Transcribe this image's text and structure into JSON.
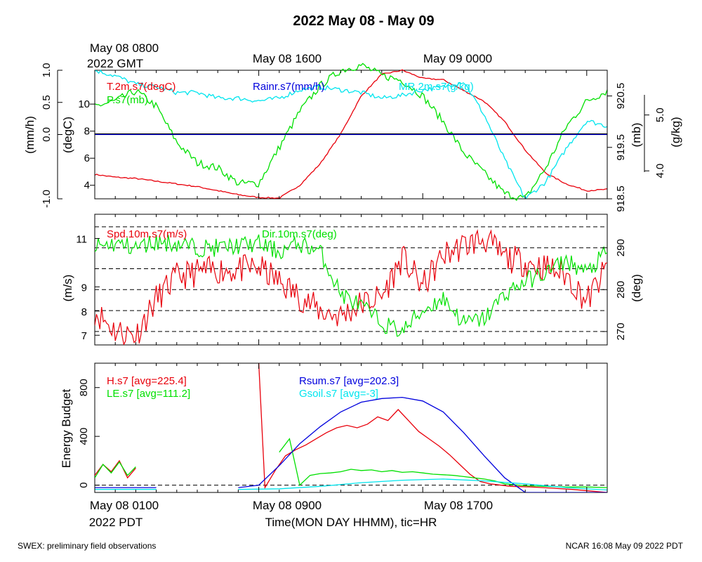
{
  "title": "2022 May 08 - May 09",
  "footer_left": "SWEX: preliminary field observations",
  "footer_right": "NCAR 16:08 May 09 2022 PDT",
  "top_time_labels": {
    "gmt_start_line1": "May 08 0800",
    "gmt_start_line2": "2022 GMT",
    "mid": "May 08 1600",
    "end": "May 09 0000"
  },
  "bottom_time_labels": {
    "start": "May 08 0100",
    "start_line2": "2022 PDT",
    "mid": "May 08 0900",
    "end": "May 08 1700",
    "axis_label": "Time(MON DAY HHMM), tic=HR"
  },
  "colors": {
    "red": "#e8000b",
    "green": "#00e000",
    "blue": "#0000dd",
    "cyan": "#00e5ee",
    "black": "#000000"
  },
  "chart_data": [
    {
      "type": "line",
      "panel": "thermo",
      "x_unit": "hours since May 08 0000 PDT",
      "xlim": [
        1,
        26
      ],
      "axes": {
        "rain": {
          "label": "(mm/h)",
          "ticks": [
            "-1.0",
            "0.0",
            "0.5",
            "1.0"
          ],
          "tick_values": [
            -1.0,
            0.0,
            0.5,
            1.0
          ],
          "ylim": [
            -1.0,
            1.0
          ]
        },
        "temp": {
          "label": "(degC)",
          "ticks": [
            "4",
            "6",
            "8",
            "10"
          ],
          "tick_values": [
            4,
            6,
            8,
            10
          ],
          "ylim": [
            3.0,
            12.5
          ]
        },
        "pres": {
          "label": "(mb)",
          "ticks": [
            "918.5",
            "919.5",
            "920.5"
          ],
          "tick_values": [
            918.5,
            919.5,
            920.5
          ],
          "ylim": [
            918.5,
            921.0
          ]
        },
        "mr": {
          "label": "(g/kg)",
          "ticks": [
            "4.0",
            "5.0"
          ],
          "tick_values": [
            4.0,
            5.0
          ],
          "ylim": [
            3.5,
            5.8
          ]
        }
      },
      "series": [
        {
          "name": "T.2m.s7(degC)",
          "axis": "temp",
          "color": "#e8000b",
          "x": [
            1,
            2,
            3,
            4,
            5,
            6,
            7,
            8,
            9,
            10,
            11,
            12,
            13,
            14,
            15,
            16,
            17,
            18,
            19,
            20,
            21,
            22,
            23,
            24,
            25,
            26
          ],
          "y": [
            4.8,
            4.6,
            4.5,
            4.3,
            4.1,
            3.9,
            3.6,
            3.3,
            3.1,
            3.05,
            4.0,
            5.6,
            7.8,
            10.6,
            12.2,
            12.5,
            11.9,
            11.8,
            11.0,
            10.2,
            8.7,
            6.6,
            4.9,
            4.1,
            3.6,
            3.7
          ]
        },
        {
          "name": "P.s7(mb)",
          "axis": "pres",
          "color": "#00e000",
          "x": [
            1,
            2,
            3,
            4,
            5,
            6,
            7,
            8,
            9,
            10,
            11,
            12,
            13,
            14,
            15,
            16,
            17,
            18,
            19,
            20,
            21,
            22,
            23,
            24,
            25,
            26
          ],
          "y": [
            920.3,
            920.4,
            920.6,
            920.3,
            919.6,
            919.2,
            919.1,
            918.8,
            918.8,
            919.5,
            920.2,
            920.7,
            921.0,
            921.1,
            920.9,
            920.8,
            920.5,
            920.0,
            919.4,
            919.0,
            918.6,
            918.5,
            919.1,
            919.9,
            920.4,
            920.6
          ]
        },
        {
          "name": "MR.2m.s7(g/kg)",
          "axis": "mr",
          "color": "#00e5ee",
          "x": [
            1,
            2,
            3,
            4,
            5,
            6,
            7,
            8,
            9,
            10,
            11,
            12,
            13,
            14,
            15,
            16,
            17,
            18,
            19,
            20,
            21,
            22,
            23,
            24,
            25,
            26
          ],
          "y": [
            5.8,
            5.7,
            5.55,
            5.5,
            5.4,
            5.4,
            5.3,
            5.3,
            5.25,
            5.3,
            5.45,
            5.5,
            5.45,
            5.4,
            5.3,
            5.35,
            5.45,
            5.5,
            5.6,
            5.0,
            4.2,
            3.5,
            3.8,
            4.4,
            4.9,
            4.8
          ]
        },
        {
          "name": "Rainr.s7(mm/h)",
          "axis": "rain",
          "color": "#0000dd",
          "x": [
            1,
            26
          ],
          "y": [
            0.0,
            0.0
          ]
        }
      ]
    },
    {
      "type": "line",
      "panel": "wind",
      "x_unit": "hours since May 08 0000 PDT",
      "xlim": [
        1,
        26
      ],
      "axes": {
        "spd": {
          "label": "(m/s)",
          "ticks": [
            "7",
            "8",
            "9",
            "11"
          ],
          "tick_values": [
            7,
            8,
            9,
            11
          ],
          "ylim": [
            6.6,
            12.0
          ]
        },
        "dir": {
          "label": "(deg)",
          "ticks": [
            "270",
            "280",
            "290"
          ],
          "tick_values": [
            270,
            280,
            290
          ],
          "ylim": [
            266.8,
            298.0
          ]
        }
      },
      "series": [
        {
          "name": "Spd.10m.s7(m/s)",
          "axis": "spd",
          "color": "#e8000b",
          "x": [
            1,
            2,
            3,
            4,
            5,
            6,
            7,
            8,
            9,
            10,
            11,
            12,
            13,
            14,
            15,
            16,
            17,
            18,
            19,
            20,
            21,
            22,
            23,
            24,
            25,
            26
          ],
          "y": [
            8.0,
            7.2,
            7.0,
            8.5,
            9.4,
            9.6,
            9.7,
            9.7,
            9.8,
            9.2,
            8.6,
            8.0,
            7.8,
            8.3,
            8.6,
            10.2,
            9.0,
            10.3,
            10.7,
            11.0,
            10.2,
            10.0,
            9.8,
            9.5,
            8.4,
            9.8
          ]
        },
        {
          "name": "Dir.10m.s7(deg)",
          "axis": "dir",
          "color": "#00e000",
          "x": [
            1,
            2,
            3,
            4,
            5,
            6,
            7,
            8,
            9,
            10,
            11,
            12,
            13,
            14,
            15,
            16,
            17,
            18,
            19,
            20,
            21,
            22,
            23,
            24,
            25,
            26
          ],
          "y": [
            290.0,
            291.0,
            290.0,
            291.5,
            291.0,
            290.0,
            290.0,
            290.5,
            291.0,
            289.0,
            291.0,
            289.0,
            279.0,
            276.0,
            272.0,
            270.0,
            275.0,
            278.0,
            272.0,
            273.0,
            279.0,
            282.0,
            284.0,
            287.0,
            284.0,
            289.0
          ]
        }
      ],
      "reference_lines_deg": [
        270,
        275,
        280,
        285,
        290,
        295
      ]
    },
    {
      "type": "line",
      "panel": "energy",
      "x_unit": "hours since May 08 0000 PDT",
      "xlim": [
        1,
        26
      ],
      "ylabel": "Energy Budget",
      "y_ticks": [
        "0",
        "400",
        "800"
      ],
      "y_tick_values": [
        0,
        400,
        800
      ],
      "ylim": [
        -60,
        1000
      ],
      "series": [
        {
          "name": "H.s7 [avg=225.4]",
          "color": "#e8000b",
          "x": [
            1,
            1.4,
            1.8,
            2.2,
            2.6,
            3.0,
            9.0,
            9.3,
            9.8,
            10.3,
            10.8,
            11.3,
            11.8,
            12.3,
            12.8,
            13.3,
            13.8,
            14.3,
            14.8,
            15.3,
            15.8,
            16.3,
            16.8,
            17.3,
            17.8,
            18.3,
            18.8,
            19.3,
            19.8,
            20.3,
            21.3,
            22.3,
            23.3,
            24.3,
            25.3,
            26
          ],
          "y": [
            80,
            170,
            110,
            200,
            60,
            140,
            1000,
            -20,
            120,
            240,
            290,
            330,
            380,
            430,
            470,
            490,
            470,
            500,
            560,
            530,
            620,
            530,
            440,
            380,
            320,
            250,
            170,
            90,
            30,
            10,
            -10,
            -15,
            -25,
            -35,
            -50,
            -60
          ]
        },
        {
          "name": "LE.s7 [avg=111.2]",
          "color": "#00e000",
          "x": [
            1,
            1.4,
            1.8,
            2.2,
            2.6,
            3.0,
            10.0,
            10.5,
            11.0,
            11.5,
            12.0,
            12.5,
            13.0,
            13.5,
            14.0,
            14.5,
            15.0,
            15.5,
            16.0,
            16.5,
            17.0,
            17.5,
            18.0,
            18.5,
            19.0,
            19.5,
            20.0,
            20.5,
            21.0,
            22.0,
            23.0,
            24.0,
            25.0,
            26
          ],
          "y": [
            60,
            170,
            100,
            190,
            80,
            150,
            270,
            380,
            0,
            80,
            95,
            100,
            110,
            130,
            120,
            125,
            110,
            120,
            105,
            110,
            100,
            90,
            85,
            80,
            70,
            60,
            50,
            35,
            10,
            -5,
            -10,
            -15,
            -15,
            -20
          ]
        },
        {
          "name": "Rsum.s7 [avg=202.3]",
          "color": "#0000dd",
          "x": [
            1,
            4,
            8,
            9,
            10,
            11,
            12,
            13,
            14,
            15,
            16,
            17,
            18,
            19,
            20,
            21,
            22,
            24,
            26
          ],
          "y": [
            -20,
            -20,
            -20,
            0,
            160,
            340,
            480,
            600,
            680,
            710,
            720,
            690,
            600,
            430,
            240,
            60,
            -60,
            -60,
            -60
          ]
        },
        {
          "name": "Gsoil.s7 [avg=-3]",
          "color": "#00e5ee",
          "x": [
            1,
            4,
            8,
            10,
            12,
            14,
            16,
            18,
            20,
            22,
            24,
            26
          ],
          "y": [
            -35,
            -35,
            -35,
            -30,
            -10,
            20,
            40,
            50,
            35,
            10,
            -20,
            -40
          ]
        }
      ],
      "reference_line_value": 0
    }
  ]
}
